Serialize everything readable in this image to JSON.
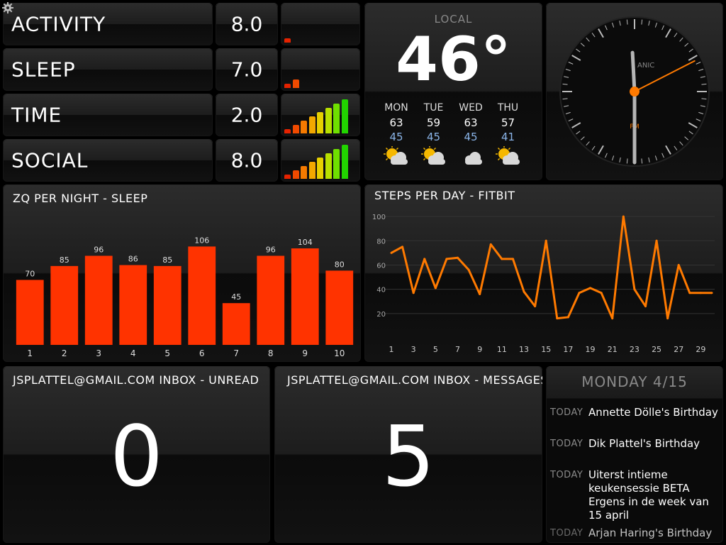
{
  "settings": {
    "icon": "gear-icon"
  },
  "stats": [
    {
      "label": "ACTIVITY",
      "value": "8.0",
      "levels": [
        1
      ]
    },
    {
      "label": "SLEEP",
      "value": "7.0",
      "levels": [
        1,
        2
      ]
    },
    {
      "label": "TIME",
      "value": "2.0",
      "levels": [
        1,
        2,
        3,
        4,
        5,
        6,
        7,
        8
      ]
    },
    {
      "label": "SOCIAL",
      "value": "8.0",
      "levels": [
        1,
        2,
        3,
        4,
        5,
        6,
        7,
        8
      ]
    }
  ],
  "weather": {
    "location": "LOCAL",
    "temp": "46°",
    "forecast": [
      {
        "day": "MON",
        "high": "63",
        "low": "45",
        "icon": "partly-cloudy-icon"
      },
      {
        "day": "TUE",
        "high": "59",
        "low": "45",
        "icon": "partly-cloudy-icon"
      },
      {
        "day": "WED",
        "high": "63",
        "low": "45",
        "icon": "cloud-icon"
      },
      {
        "day": "THU",
        "high": "57",
        "low": "41",
        "icon": "partly-cloudy-icon"
      }
    ]
  },
  "clock": {
    "brand": "ANIC",
    "ampm": "PM",
    "hour": 11.9,
    "minute": 30,
    "second": 10.5
  },
  "colors": {
    "accent_red": "#ff3300",
    "accent_orange": "#ff7a00",
    "low_temp": "#8ab4e8"
  },
  "chart_data": [
    {
      "type": "bar",
      "title": "ZQ PER NIGHT - SLEEP",
      "categories": [
        "1",
        "2",
        "3",
        "4",
        "5",
        "6",
        "7",
        "8",
        "9",
        "10"
      ],
      "values": [
        70,
        85,
        96,
        86,
        85,
        106,
        45,
        96,
        104,
        80
      ],
      "ylim": [
        0,
        130
      ]
    },
    {
      "type": "line",
      "title": "STEPS PER DAY - FITBIT",
      "x": [
        1,
        2,
        3,
        4,
        5,
        6,
        7,
        8,
        9,
        10,
        11,
        12,
        13,
        14,
        15,
        16,
        17,
        18,
        19,
        20,
        21,
        22,
        23,
        24,
        25,
        26,
        27,
        28,
        29,
        30
      ],
      "values": [
        70,
        75,
        37,
        65,
        41,
        65,
        66,
        56,
        36,
        77,
        65,
        65,
        38,
        26,
        80,
        16,
        17,
        37,
        41,
        37,
        16,
        100,
        40,
        26,
        80,
        16,
        60,
        37,
        37,
        37
      ],
      "x_ticks": [
        "1",
        "3",
        "5",
        "7",
        "9",
        "11",
        "13",
        "15",
        "17",
        "19",
        "21",
        "23",
        "25",
        "27",
        "29"
      ],
      "y_ticks": [
        "20",
        "40",
        "60",
        "80",
        "100"
      ],
      "ylim": [
        0,
        110
      ],
      "grid": true
    }
  ],
  "inbox_unread": {
    "title": "JSPLATTEL@GMAIL.COM INBOX - UNREAD",
    "value": "0"
  },
  "inbox_messages": {
    "title": "JSPLATTEL@GMAIL.COM INBOX - MESSAGES",
    "value": "5"
  },
  "calendar": {
    "header": "MONDAY 4/15",
    "events": [
      {
        "day": "TODAY",
        "text": "Annette Dölle's Birthday"
      },
      {
        "day": "TODAY",
        "text": "Dik Plattel's Birthday"
      },
      {
        "day": "TODAY",
        "text": "Uiterst intieme keukensessie BETA Ergens in de week van 15 april"
      },
      {
        "day": "TODAY",
        "text": "Arjan Haring's Birthday"
      }
    ]
  }
}
